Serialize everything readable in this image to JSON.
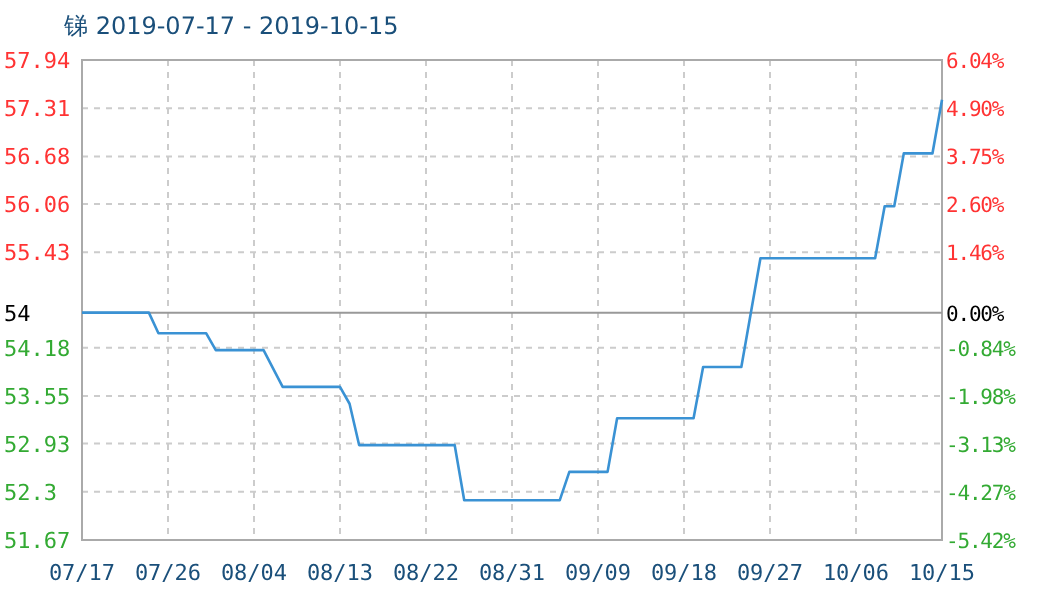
{
  "chart_data": {
    "type": "line",
    "title": "锑 2019-07-17 - 2019-10-15",
    "x": [
      "2019-07-17",
      "2019-07-24",
      "2019-07-25",
      "2019-07-30",
      "2019-07-31",
      "2019-08-05",
      "2019-08-07",
      "2019-08-13",
      "2019-08-14",
      "2019-08-15",
      "2019-08-25",
      "2019-08-26",
      "2019-09-05",
      "2019-09-06",
      "2019-09-10",
      "2019-09-11",
      "2019-09-19",
      "2019-09-20",
      "2019-09-24",
      "2019-09-26",
      "2019-10-08",
      "2019-10-09",
      "2019-10-10",
      "2019-10-11",
      "2019-10-14",
      "2019-10-15"
    ],
    "series": [
      {
        "color": "#3a92d4",
        "values": [
          54.64,
          54.64,
          54.37,
          54.37,
          54.15,
          54.15,
          53.67,
          53.67,
          53.45,
          52.91,
          52.91,
          52.19,
          52.19,
          52.56,
          52.56,
          53.26,
          53.26,
          53.93,
          53.93,
          55.35,
          55.35,
          56.03,
          56.03,
          56.72,
          56.72,
          57.42
        ]
      }
    ],
    "xlim": [
      "2019-07-17",
      "2019-10-15"
    ],
    "xticks": [
      {
        "value": "2019-07-17",
        "label": "07/17"
      },
      {
        "value": "2019-07-26",
        "label": "07/26"
      },
      {
        "value": "2019-08-04",
        "label": "08/04"
      },
      {
        "value": "2019-08-13",
        "label": "08/13"
      },
      {
        "value": "2019-08-22",
        "label": "08/22"
      },
      {
        "value": "2019-08-31",
        "label": "08/31"
      },
      {
        "value": "2019-09-09",
        "label": "09/09"
      },
      {
        "value": "2019-09-18",
        "label": "09/18"
      },
      {
        "value": "2019-09-27",
        "label": "09/27"
      },
      {
        "value": "2019-10-06",
        "label": "10/06"
      },
      {
        "value": "2019-10-15",
        "label": "10/15"
      }
    ],
    "ylim": [
      51.67,
      57.94
    ],
    "yticks": [
      51.67,
      52.3,
      52.93,
      53.55,
      54.18,
      55.43,
      56.06,
      56.68,
      57.31,
      57.94
    ],
    "y2lim": [
      -5.42,
      6.04
    ],
    "y2ticks": [
      {
        "value": -5.42,
        "label": "-5.42%"
      },
      {
        "value": -4.27,
        "label": "-4.27%"
      },
      {
        "value": -3.13,
        "label": "-3.13%"
      },
      {
        "value": -1.98,
        "label": "-1.98%"
      },
      {
        "value": -0.84,
        "label": "-0.84%"
      },
      {
        "value": 0,
        "label": "0.00%"
      },
      {
        "value": 1.46,
        "label": "1.46%"
      },
      {
        "value": 2.6,
        "label": "2.60%"
      },
      {
        "value": 3.75,
        "label": "3.75%"
      },
      {
        "value": 4.9,
        "label": "4.90%"
      },
      {
        "value": 6.04,
        "label": "6.04%"
      }
    ],
    "ref_lines": [
      {
        "axis": "y",
        "value": 54.64,
        "color": "#999999"
      }
    ],
    "annotations": [
      "54"
    ],
    "grid": true,
    "marker": "none",
    "line_style": "solid"
  }
}
